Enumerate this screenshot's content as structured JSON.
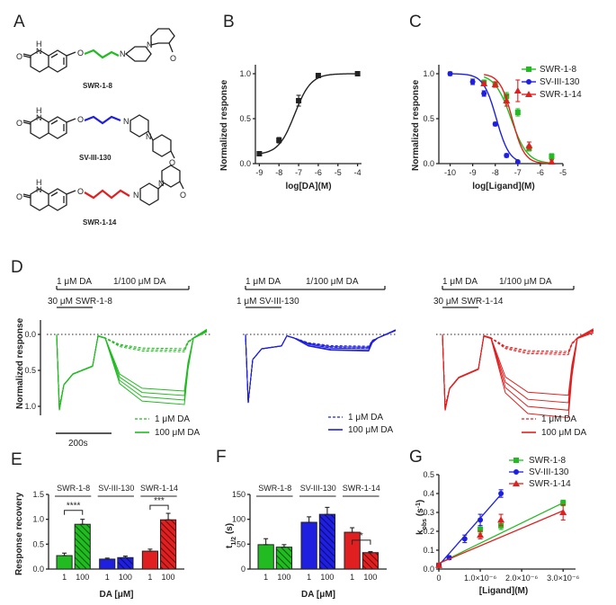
{
  "panels": {
    "A": "A",
    "B": "B",
    "C": "C",
    "D": "D",
    "E": "E",
    "F": "F",
    "G": "G"
  },
  "colors": {
    "green": "#22bb22",
    "blue": "#1f1fe0",
    "red": "#e02020",
    "black": "#222222"
  },
  "compounds": {
    "c1": "SWR-1-8",
    "c2": "SV-III-130",
    "c3": "SWR-1-14"
  },
  "atoms": {
    "h": "H",
    "n": "N",
    "o": "O",
    "ome": "O",
    "methyl": "—"
  },
  "panelD": {
    "ylabel": "Normalized response",
    "yticks": [
      "0.0",
      "0.5",
      "1.0"
    ],
    "scalebar": "200s",
    "da_low": "1 μM DA",
    "da_high": "1/100 μM DA",
    "antag1": "30 μM SWR-1-8",
    "antag2": "1 μM SV-III-130",
    "antag3": "30 μM SWR-1-14",
    "leg_low": "1 μM DA",
    "leg_high": "100 μM DA"
  },
  "panelE_labels": {
    "ylabel": "Response recovery",
    "xlabel": "DA [μM]",
    "sig1": "****",
    "sig3": "***"
  },
  "panelF_labels": {
    "ylabel": "t",
    "ysub": "1/2",
    "yunit": " (s)",
    "xlabel": "DA [μM]",
    "sig": "*"
  },
  "panelG_labels": {
    "ylabel": "k",
    "ysub": "obs",
    "yunit": " (s",
    "yunit_sup": "-1",
    "yunit_end": ")",
    "xlabel": "[Ligand](M)"
  },
  "chart_data": [
    {
      "id": "B",
      "type": "line",
      "xlabel": "log[DA](M)",
      "ylabel": "Normalized response",
      "xlim": [
        -9.2,
        -3.8
      ],
      "ylim": [
        0,
        1.1
      ],
      "xticks": [
        -9,
        -8,
        -7,
        -6,
        -5,
        -4
      ],
      "yticks": [
        0.0,
        0.5,
        1.0
      ],
      "series": [
        {
          "x": [
            -9,
            -8,
            -7,
            -6,
            -4
          ],
          "y": [
            0.11,
            0.26,
            0.7,
            0.98,
            1.0
          ],
          "err": [
            0.02,
            0.03,
            0.06,
            0.01,
            0.01
          ]
        }
      ]
    },
    {
      "id": "C",
      "type": "line",
      "xlabel": "log[Ligand](M)",
      "ylabel": "Normalized response",
      "xlim": [
        -10.5,
        -5.0
      ],
      "ylim": [
        0,
        1.1
      ],
      "xticks": [
        -10,
        -9,
        -8,
        -7,
        -6,
        -5
      ],
      "yticks": [
        0.0,
        0.5,
        1.0
      ],
      "legend_position": "top-right",
      "series": [
        {
          "name": "SWR-1-8",
          "color": "#22bb22",
          "marker": "square",
          "x": [
            -8.5,
            -8,
            -7.5,
            -7,
            -6.5,
            -5.5
          ],
          "y": [
            0.9,
            0.88,
            0.75,
            0.57,
            0.17,
            0.08
          ],
          "err": [
            0.03,
            0.03,
            0.04,
            0.04,
            0.03,
            0.03
          ]
        },
        {
          "name": "SV-III-130",
          "color": "#1f1fe0",
          "marker": "circle",
          "x": [
            -10,
            -9,
            -8.5,
            -8,
            -7.5,
            -7
          ],
          "y": [
            1.0,
            0.91,
            0.78,
            0.44,
            0.09,
            0.02
          ],
          "err": [
            0.02,
            0.03,
            0.03,
            0.02,
            0.02,
            0.01
          ]
        },
        {
          "name": "SWR-1-14",
          "color": "#e02020",
          "marker": "triangle",
          "x": [
            -8.5,
            -8,
            -7.5,
            -7,
            -6.5,
            -5.5
          ],
          "y": [
            0.89,
            0.88,
            0.7,
            0.81,
            0.2,
            0.02
          ],
          "err": [
            0.02,
            0.03,
            0.06,
            0.12,
            0.04,
            0.02
          ]
        }
      ]
    },
    {
      "id": "E",
      "type": "bar",
      "ylabel": "Response recovery",
      "xlabel": "DA [μM]",
      "ylim": [
        0,
        1.5
      ],
      "yticks": [
        0.0,
        0.5,
        1.0,
        1.5
      ],
      "groups": [
        "SWR-1-8",
        "SV-III-130",
        "SWR-1-14"
      ],
      "categories": [
        "1",
        "100"
      ],
      "series": [
        {
          "name": "SWR-1-8",
          "color": "#22bb22",
          "values": [
            0.27,
            0.9
          ],
          "err": [
            0.05,
            0.1
          ]
        },
        {
          "name": "SV-III-130",
          "color": "#1f1fe0",
          "values": [
            0.2,
            0.23
          ],
          "err": [
            0.02,
            0.03
          ]
        },
        {
          "name": "SWR-1-14",
          "color": "#e02020",
          "values": [
            0.36,
            0.99
          ],
          "err": [
            0.04,
            0.13
          ]
        }
      ]
    },
    {
      "id": "F",
      "type": "bar",
      "ylabel": "t1/2 (s)",
      "xlabel": "DA [μM]",
      "ylim": [
        0,
        150
      ],
      "yticks": [
        0,
        50,
        100,
        150
      ],
      "groups": [
        "SWR-1-8",
        "SV-III-130",
        "SWR-1-14"
      ],
      "categories": [
        "1",
        "100"
      ],
      "series": [
        {
          "name": "SWR-1-8",
          "color": "#22bb22",
          "values": [
            49,
            44
          ],
          "err": [
            12,
            5
          ]
        },
        {
          "name": "SV-III-130",
          "color": "#1f1fe0",
          "values": [
            94,
            110
          ],
          "err": [
            11,
            14
          ]
        },
        {
          "name": "SWR-1-14",
          "color": "#e02020",
          "values": [
            74,
            33
          ],
          "err": [
            9,
            2
          ]
        }
      ]
    },
    {
      "id": "G",
      "type": "scatter",
      "ylabel": "kobs (s-1)",
      "xlabel": "[Ligand](M)",
      "xlim": [
        0,
        3.3e-06
      ],
      "ylim": [
        0,
        0.5
      ],
      "xticks": [
        0,
        1e-06,
        2e-06,
        3e-06
      ],
      "xticklabels": [
        "0",
        "1.0×10⁻⁶",
        "2.0×10⁻⁶",
        "3.0×10⁻⁶"
      ],
      "yticks": [
        0.0,
        0.1,
        0.2,
        0.3,
        0.4,
        0.5
      ],
      "legend_position": "top-right",
      "series": [
        {
          "name": "SWR-1-8",
          "color": "#22bb22",
          "marker": "square",
          "x": [
            0,
            1e-06,
            1.5e-06,
            3e-06
          ],
          "y": [
            0.02,
            0.21,
            0.23,
            0.35
          ],
          "err": [
            0.01,
            0.02,
            0.02,
            0.015
          ],
          "fit": [
            0.03,
            0.107
          ]
        },
        {
          "name": "SV-III-130",
          "color": "#1f1fe0",
          "marker": "circle",
          "x": [
            0,
            2.5e-07,
            6.25e-07,
            1e-06,
            1.5e-06
          ],
          "y": [
            0.02,
            0.06,
            0.16,
            0.26,
            0.4
          ],
          "err": [
            0.01,
            0.01,
            0.02,
            0.03,
            0.02
          ],
          "fit": [
            0.02,
            0.25
          ]
        },
        {
          "name": "SWR-1-14",
          "color": "#e02020",
          "marker": "triangle",
          "x": [
            0,
            1e-06,
            1.5e-06,
            3e-06
          ],
          "y": [
            0.02,
            0.18,
            0.26,
            0.3
          ],
          "err": [
            0.01,
            0.02,
            0.03,
            0.04
          ],
          "fit": [
            0.03,
            0.093
          ]
        }
      ]
    }
  ]
}
